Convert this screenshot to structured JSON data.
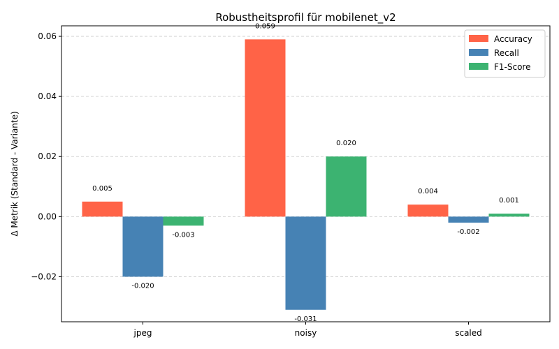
{
  "chart_data": {
    "type": "bar",
    "title": "Robustheitsprofil für mobilenet_v2",
    "xlabel": "",
    "ylabel": "Δ Metrik (Standard - Variante)",
    "categories": [
      "jpeg",
      "noisy",
      "scaled"
    ],
    "series": [
      {
        "name": "Accuracy",
        "color": "#ff6347",
        "values": [
          0.005,
          0.059,
          0.004
        ],
        "labels": [
          "0.005",
          "0.059",
          "0.004"
        ]
      },
      {
        "name": "Recall",
        "color": "#4682b4",
        "values": [
          -0.02,
          -0.031,
          -0.002
        ],
        "labels": [
          "-0.020",
          "-0.031",
          "-0.002"
        ]
      },
      {
        "name": "F1-Score",
        "color": "#3cb371",
        "values": [
          -0.003,
          0.02,
          0.001
        ],
        "labels": [
          "-0.003",
          "0.020",
          "0.001"
        ]
      }
    ],
    "ylim": [
      -0.035,
      0.0635
    ],
    "yticks": [
      -0.02,
      0.0,
      0.02,
      0.04,
      0.06
    ],
    "ytick_labels": [
      "−0.02",
      "0.00",
      "0.02",
      "0.04",
      "0.06"
    ],
    "grid": "y-dashed",
    "legend_position": "top-right"
  }
}
